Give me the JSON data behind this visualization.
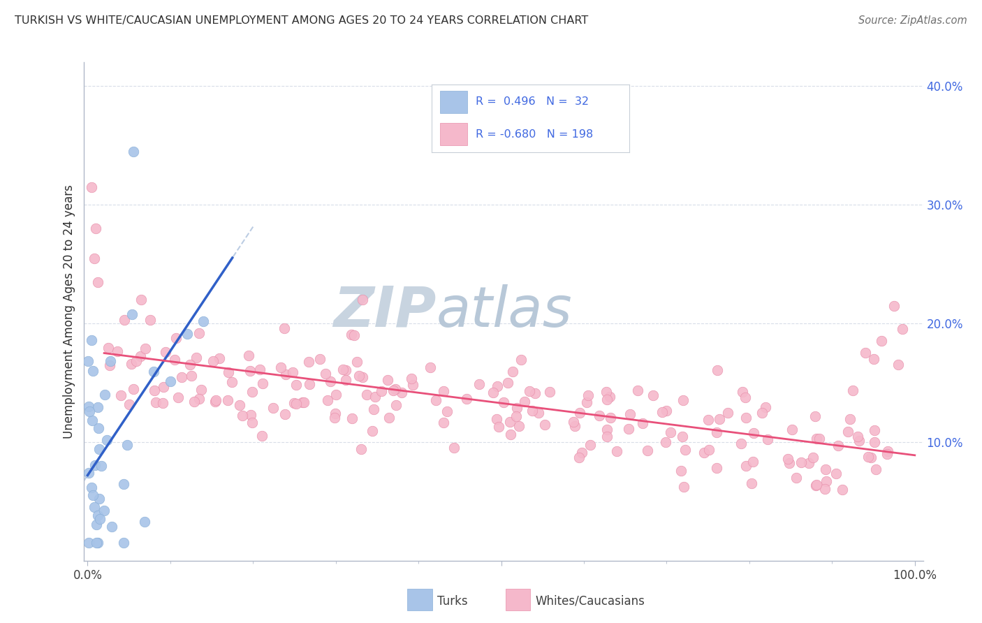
{
  "title": "TURKISH VS WHITE/CAUCASIAN UNEMPLOYMENT AMONG AGES 20 TO 24 YEARS CORRELATION CHART",
  "source_text": "Source: ZipAtlas.com",
  "ylabel_label": "Unemployment Among Ages 20 to 24 years",
  "turks_color": "#a8c4e8",
  "turks_fill": "#adc8ea",
  "turks_edge_color": "#8aafd8",
  "whites_color": "#f5b8cb",
  "whites_fill": "#f5b8cb",
  "whites_edge_color": "#e890ab",
  "trend_turks_color": "#3060c8",
  "trend_whites_color": "#e8507a",
  "trend_turks_dashed_color": "#a0b8d8",
  "grid_color": "#d8dde8",
  "background_color": "#ffffff",
  "watermark_zip_color": "#c8d4e0",
  "watermark_atlas_color": "#b8c8d8",
  "title_color": "#303030",
  "source_color": "#707070",
  "axis_label_color": "#303030",
  "right_tick_color": "#4169e1",
  "ylim": [
    0.0,
    0.42
  ],
  "xlim": [
    -0.005,
    1.01
  ],
  "R_turks": 0.496,
  "N_turks": 32,
  "R_whites": -0.68,
  "N_whites": 198,
  "turks_seed": 7,
  "whites_seed": 42
}
